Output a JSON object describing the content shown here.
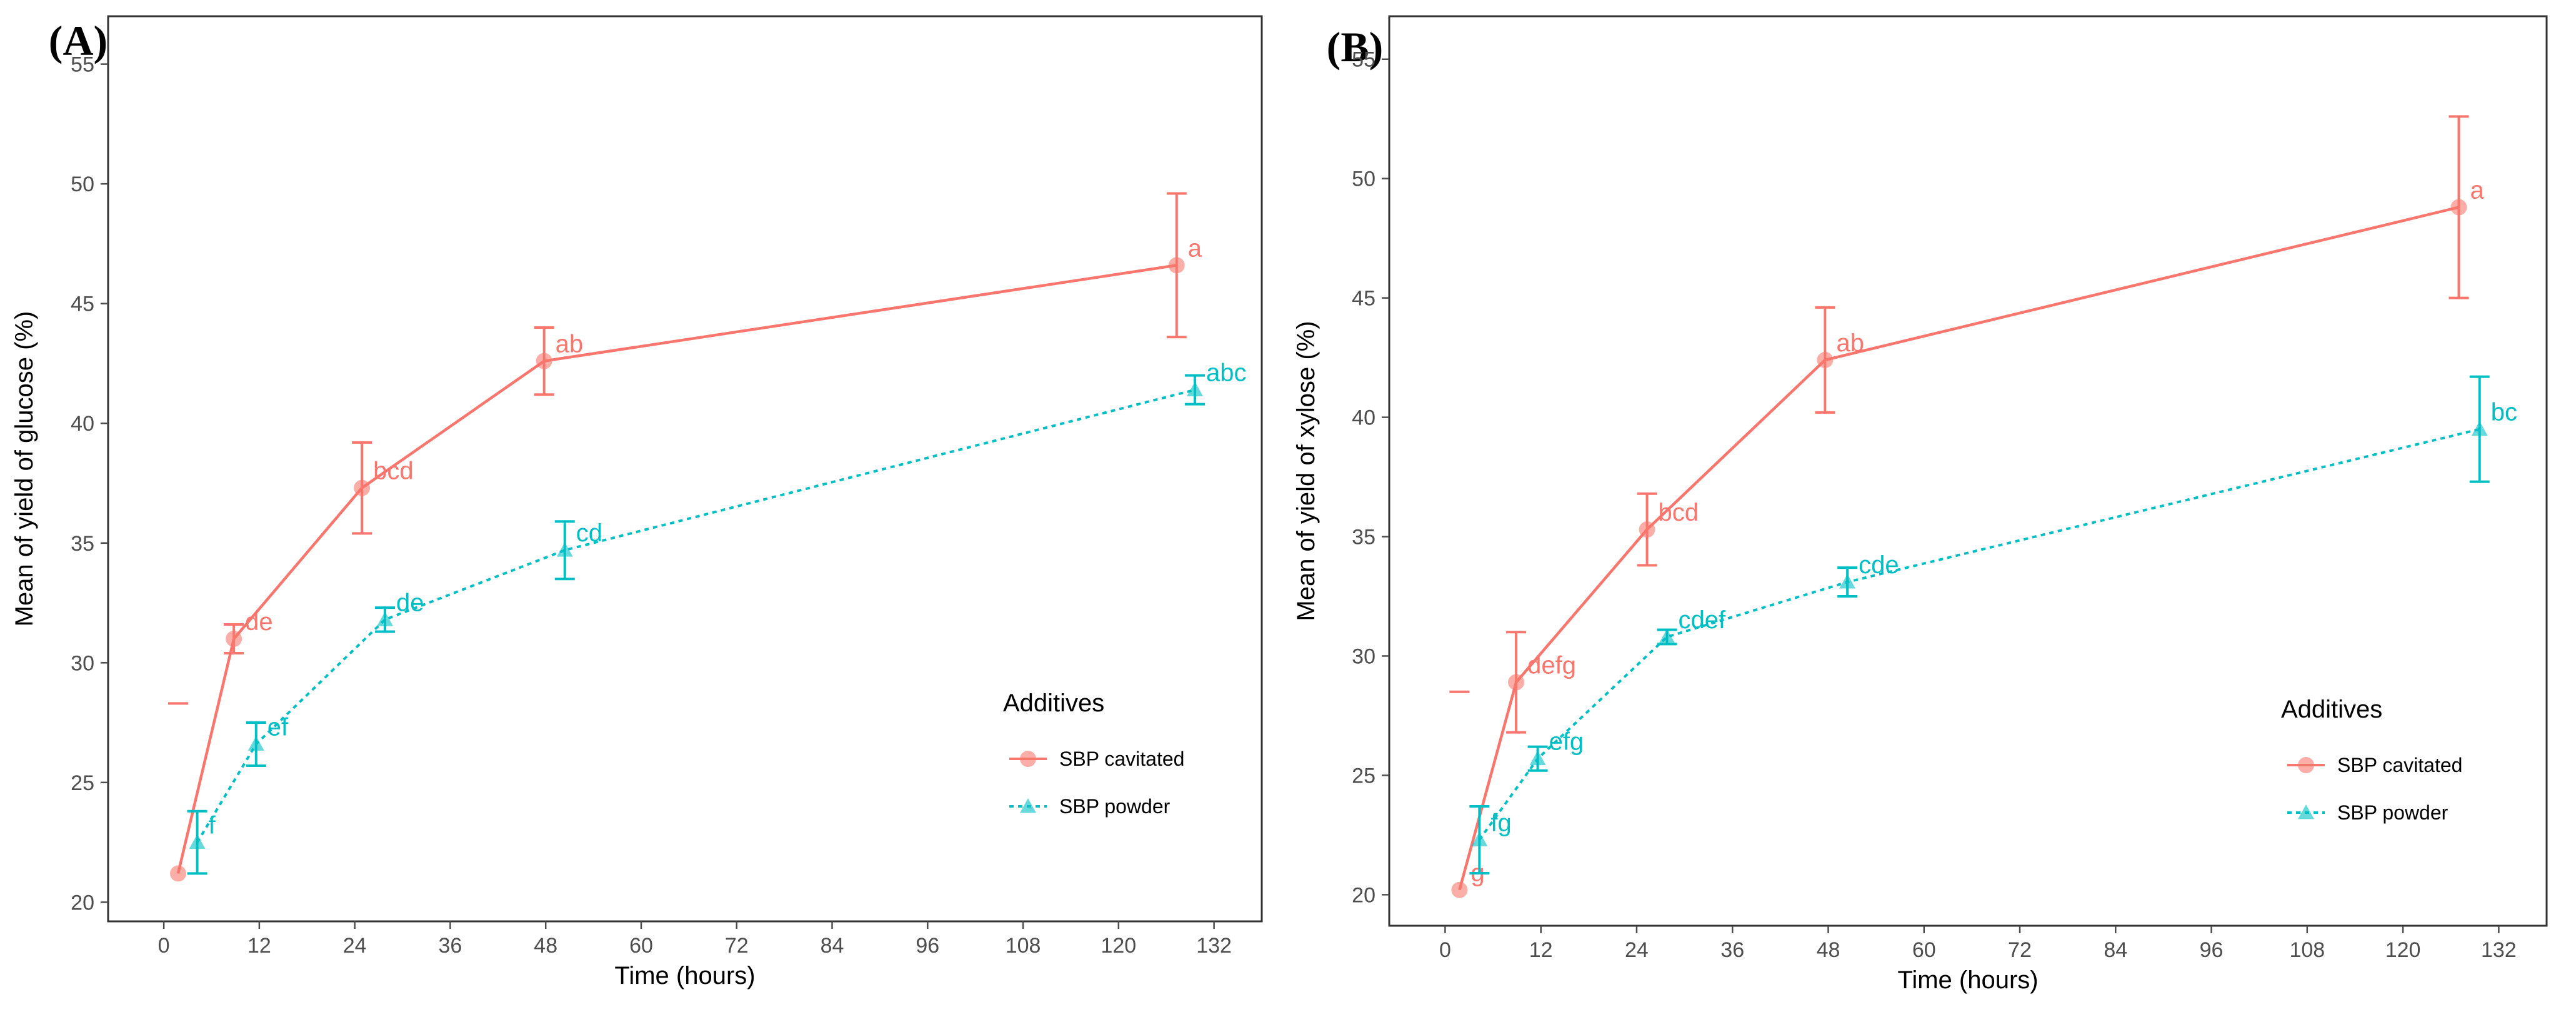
{
  "colors": {
    "cavitated": "#F8766D",
    "powder": "#00BFC4",
    "frame": "#333333",
    "tick": "#4d4d4d"
  },
  "chart_data": [
    {
      "type": "line",
      "panel_label": "(A)",
      "xlabel": "Time (hours)",
      "ylabel": "Mean of yield of glucose (%)",
      "xlim": [
        -7,
        138
      ],
      "ylim": [
        19.2,
        57
      ],
      "xticks": [
        0,
        12,
        24,
        36,
        48,
        60,
        72,
        84,
        96,
        108,
        120,
        132
      ],
      "yticks": [
        20,
        25,
        30,
        35,
        40,
        45,
        50,
        55
      ],
      "stray_dash": {
        "x": 1.8,
        "y": 28.3
      },
      "legend": {
        "title": "Additives",
        "position": "bottom-right"
      },
      "series": [
        {
          "name": "SBP cavitated",
          "color_key": "cavitated",
          "marker": "circle",
          "dash": "solid",
          "points": [
            {
              "x": 1.8,
              "y": 21.2,
              "err": null,
              "label": ""
            },
            {
              "x": 8.8,
              "y": 31.0,
              "err": 0.6,
              "label": "de"
            },
            {
              "x": 24.9,
              "y": 37.3,
              "err": 1.9,
              "label": "bcd"
            },
            {
              "x": 47.8,
              "y": 42.6,
              "err": 1.4,
              "label": "ab"
            },
            {
              "x": 127.3,
              "y": 46.6,
              "err": 3.0,
              "label": "a"
            }
          ]
        },
        {
          "name": "SBP powder",
          "color_key": "powder",
          "marker": "triangle",
          "dash": "dotted",
          "points": [
            {
              "x": 4.2,
              "y": 22.5,
              "err": 1.3,
              "label": "f"
            },
            {
              "x": 11.6,
              "y": 26.6,
              "err": 0.9,
              "label": "ef"
            },
            {
              "x": 27.8,
              "y": 31.8,
              "err": 0.5,
              "label": "de"
            },
            {
              "x": 50.4,
              "y": 34.7,
              "err": 1.2,
              "label": "cd"
            },
            {
              "x": 129.6,
              "y": 41.4,
              "err": 0.6,
              "label": "abc"
            }
          ]
        }
      ]
    },
    {
      "type": "line",
      "panel_label": "(B)",
      "xlabel": "Time (hours)",
      "ylabel": "Mean of yield of xylose (%)",
      "xlim": [
        -7,
        138
      ],
      "ylim": [
        18.7,
        56.8
      ],
      "xticks": [
        0,
        12,
        24,
        36,
        48,
        60,
        72,
        84,
        96,
        108,
        120,
        132
      ],
      "yticks": [
        20,
        25,
        30,
        35,
        40,
        45,
        50,
        55
      ],
      "stray_dash": {
        "x": 1.8,
        "y": 28.5
      },
      "legend": {
        "title": "Additives",
        "position": "bottom-right"
      },
      "series": [
        {
          "name": "SBP cavitated",
          "color_key": "cavitated",
          "marker": "circle",
          "dash": "solid",
          "points": [
            {
              "x": 1.8,
              "y": 20.2,
              "err": null,
              "label": "g"
            },
            {
              "x": 8.9,
              "y": 28.9,
              "err": 2.1,
              "label": "defg"
            },
            {
              "x": 25.3,
              "y": 35.3,
              "err": 1.5,
              "label": "bcd"
            },
            {
              "x": 47.6,
              "y": 42.4,
              "err": 2.2,
              "label": "ab"
            },
            {
              "x": 127.0,
              "y": 48.8,
              "err": 3.8,
              "label": "a"
            }
          ]
        },
        {
          "name": "SBP powder",
          "color_key": "powder",
          "marker": "triangle",
          "dash": "dotted",
          "points": [
            {
              "x": 4.3,
              "y": 22.3,
              "err": 1.4,
              "label": "fg"
            },
            {
              "x": 11.6,
              "y": 25.7,
              "err": 0.5,
              "label": "efg"
            },
            {
              "x": 27.8,
              "y": 30.8,
              "err": 0.3,
              "label": "cdef"
            },
            {
              "x": 50.4,
              "y": 33.1,
              "err": 0.6,
              "label": "cde"
            },
            {
              "x": 129.6,
              "y": 39.5,
              "err": 2.2,
              "label": "bc"
            }
          ]
        }
      ]
    }
  ]
}
